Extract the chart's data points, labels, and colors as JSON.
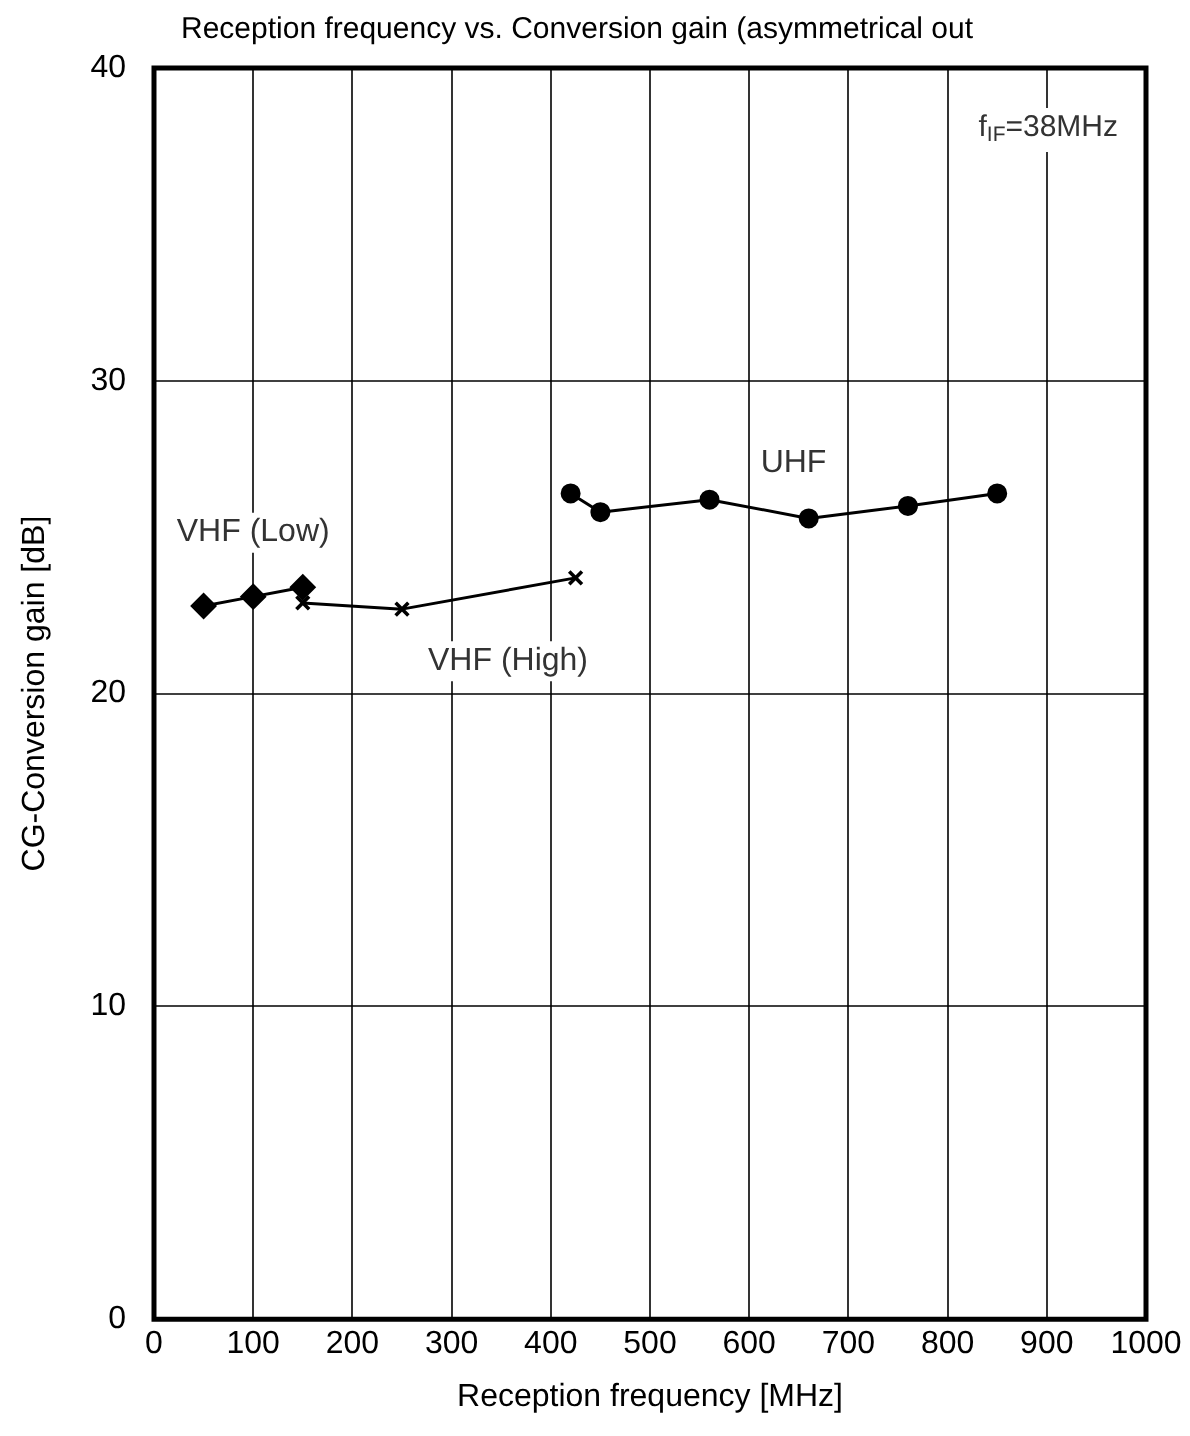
{
  "chart_data": {
    "type": "line",
    "title": "Reception frequency vs. Conversion gain (asymmetrical out",
    "xlabel": "Reception frequency [MHz]",
    "ylabel": "CG-Conversion gain [dB]",
    "xlim": [
      0,
      1000
    ],
    "xticks": [
      0,
      100,
      200,
      300,
      400,
      500,
      600,
      700,
      800,
      900,
      1000
    ],
    "ylim": [
      0,
      40
    ],
    "yticks": [
      0,
      10,
      20,
      30,
      40
    ],
    "grid": true,
    "legend": false,
    "series": [
      {
        "name": "VHF (Low)",
        "color": "#000000",
        "marker": "diamond",
        "x": [
          50,
          100,
          150
        ],
        "values": [
          22.8,
          23.1,
          23.4
        ]
      },
      {
        "name": "VHF (High)",
        "color": "#000000",
        "marker": "cross",
        "x": [
          150,
          250,
          425
        ],
        "values": [
          22.9,
          22.7,
          23.7
        ]
      },
      {
        "name": "UHF",
        "color": "#000000",
        "marker": "circle",
        "x": [
          420,
          450,
          560,
          660,
          760,
          850
        ],
        "values": [
          26.4,
          25.8,
          26.2,
          25.6,
          26.0,
          26.4
        ]
      }
    ],
    "annotations": [
      "f$_{IF}$=38MHz"
    ]
  }
}
